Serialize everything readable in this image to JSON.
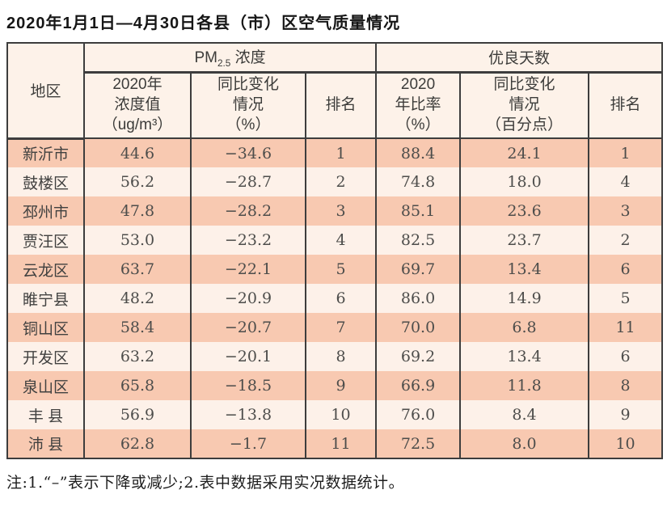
{
  "title": "2020年1月1日—4月30日各县（市）区空气质量情况",
  "header": {
    "region": "地区",
    "pm_group": {
      "prefix": "PM",
      "sub": "2.5",
      "suffix": " 浓度"
    },
    "good_days_group": "优良天数",
    "sub_columns": [
      "2020年\n浓度值\n（ug/m³）",
      "同比变化\n情况\n（%）",
      "排名",
      "2020\n年比率\n（%）",
      "同比变化\n情况\n（百分点）",
      "排名"
    ]
  },
  "table": {
    "rows": [
      {
        "region": "新沂市",
        "values": [
          "44.6",
          "−34.6",
          "1",
          "88.4",
          "24.1",
          "1"
        ]
      },
      {
        "region": "鼓楼区",
        "values": [
          "56.2",
          "−28.7",
          "2",
          "74.8",
          "18.0",
          "4"
        ]
      },
      {
        "region": "邳州市",
        "values": [
          "47.8",
          "−28.2",
          "3",
          "85.1",
          "23.6",
          "3"
        ]
      },
      {
        "region": "贾汪区",
        "values": [
          "53.0",
          "−23.2",
          "4",
          "82.5",
          "23.7",
          "2"
        ]
      },
      {
        "region": "云龙区",
        "values": [
          "63.7",
          "−22.1",
          "5",
          "69.7",
          "13.4",
          "6"
        ]
      },
      {
        "region": "睢宁县",
        "values": [
          "48.2",
          "−20.9",
          "6",
          "86.0",
          "14.9",
          "5"
        ]
      },
      {
        "region": "铜山区",
        "values": [
          "58.4",
          "−20.7",
          "7",
          "70.0",
          "6.8",
          "11"
        ]
      },
      {
        "region": "开发区",
        "values": [
          "63.2",
          "−20.1",
          "8",
          "69.2",
          "13.4",
          "6"
        ]
      },
      {
        "region": "泉山区",
        "values": [
          "65.8",
          "−18.5",
          "9",
          "66.9",
          "11.8",
          "8"
        ]
      },
      {
        "region": "丰 县",
        "values": [
          "56.9",
          "−13.8",
          "10",
          "76.0",
          "8.4",
          "9"
        ]
      },
      {
        "region": "沛 县",
        "values": [
          "62.8",
          "−1.7",
          "11",
          "72.5",
          "8.0",
          "10"
        ]
      }
    ]
  },
  "footnote": "注:1.“–”表示下降或减少;2.表中数据采用实况数据统计。",
  "colors": {
    "stripe_salmon": "#f8c9b1",
    "stripe_light": "#fdf1e9",
    "header_bg": "#fdf2e9",
    "border": "#3d3d3d"
  }
}
